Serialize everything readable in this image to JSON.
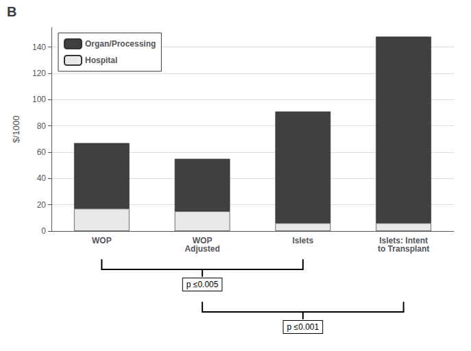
{
  "chart_data": {
    "type": "bar",
    "title": "B",
    "ylabel": "$/1000",
    "categories": [
      "WOP",
      "WOP\nAdjusted",
      "Islets",
      "Islets: Intent\nto Transplant"
    ],
    "series": [
      {
        "name": "Hospital",
        "color": "#e8e8e8",
        "values": [
          17,
          15,
          6,
          6
        ]
      },
      {
        "name": "Organ/Processing",
        "color": "#404040",
        "values": [
          50,
          40,
          85,
          142
        ]
      }
    ],
    "stacked": true,
    "ylim": [
      0,
      155
    ],
    "yticks": [
      0,
      20,
      40,
      60,
      80,
      100,
      120,
      140
    ],
    "grid": true,
    "legend": "upper left",
    "annotations": [
      {
        "text": "p ≤0.005",
        "from": "WOP",
        "to": "Islets"
      },
      {
        "text": "p ≤0.001",
        "from": "WOP\nAdjusted",
        "to": "Islets: Intent\nto Transplant"
      }
    ]
  }
}
